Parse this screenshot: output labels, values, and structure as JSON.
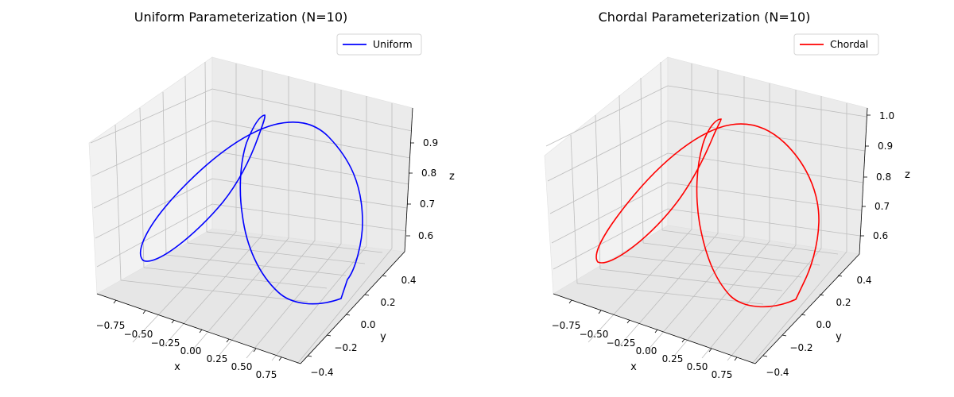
{
  "chart_data": [
    {
      "type": "line",
      "projection": "3d",
      "title": "Uniform Parameterization (N=10)",
      "xlabel": "x",
      "ylabel": "y",
      "zlabel": "z",
      "xticks": [
        "−0.75",
        "−0.50",
        "−0.25",
        "0.00",
        "0.25",
        "0.50",
        "0.75"
      ],
      "yticks": [
        "−0.4",
        "−0.2",
        "0.0",
        "0.2",
        "0.4"
      ],
      "zticks": [
        "0.6",
        "0.7",
        "0.8",
        "0.9"
      ],
      "grid": true,
      "legend_position": "upper right",
      "series": [
        {
          "name": "Uniform",
          "color": "#0000ff"
        }
      ]
    },
    {
      "type": "line",
      "projection": "3d",
      "title": "Chordal Parameterization (N=10)",
      "xlabel": "x",
      "ylabel": "y",
      "zlabel": "z",
      "xticks": [
        "−0.75",
        "−0.50",
        "−0.25",
        "0.00",
        "0.25",
        "0.50",
        "0.75"
      ],
      "yticks": [
        "−0.4",
        "−0.2",
        "0.0",
        "0.2",
        "0.4"
      ],
      "zticks": [
        "0.6",
        "0.7",
        "0.8",
        "0.9",
        "1.0"
      ],
      "grid": true,
      "legend_position": "upper right",
      "series": [
        {
          "name": "Chordal",
          "color": "#ff0000"
        }
      ]
    }
  ]
}
